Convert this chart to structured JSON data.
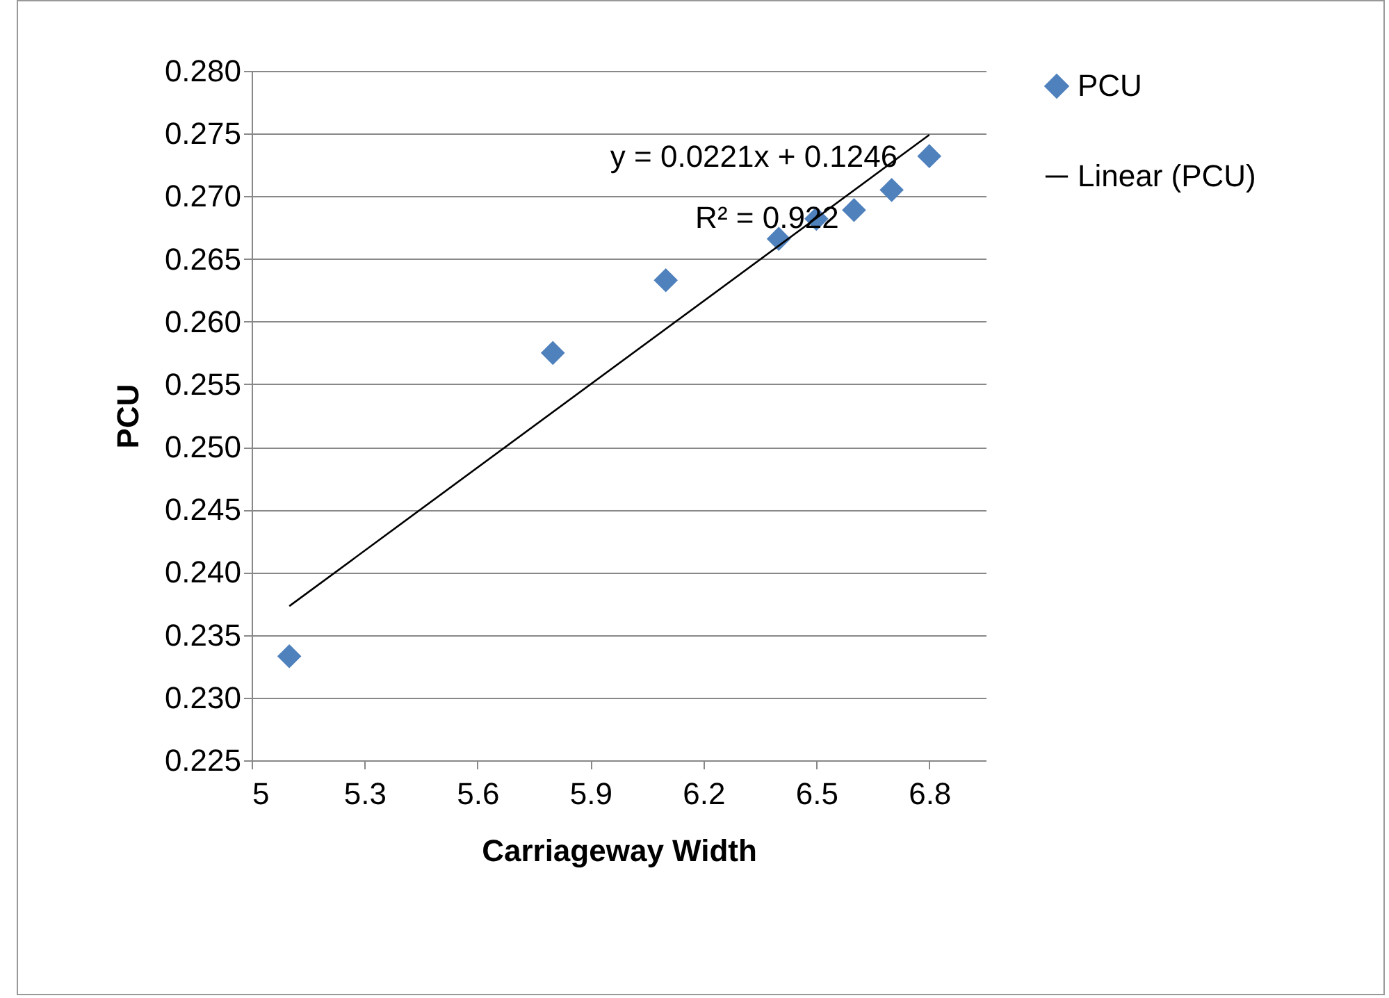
{
  "chart_data": {
    "type": "scatter",
    "xlabel": "Carriageway Width",
    "ylabel": "PCU",
    "xlim": [
      5,
      6.95
    ],
    "xticks": [
      5,
      5.3,
      5.6,
      5.9,
      6.2,
      6.5,
      6.8
    ],
    "ylim": [
      0.225,
      0.28
    ],
    "yticks": [
      {
        "value": 0.225,
        "label": "0.225"
      },
      {
        "value": 0.23,
        "label": "0.230"
      },
      {
        "value": 0.235,
        "label": "0.235"
      },
      {
        "value": 0.24,
        "label": "0.240"
      },
      {
        "value": 0.245,
        "label": "0.245"
      },
      {
        "value": 0.25,
        "label": "0.250"
      },
      {
        "value": 0.255,
        "label": "0.255"
      },
      {
        "value": 0.26,
        "label": "0.260"
      },
      {
        "value": 0.265,
        "label": "0.265"
      },
      {
        "value": 0.27,
        "label": "0.270"
      },
      {
        "value": 0.275,
        "label": "0.275"
      },
      {
        "value": 0.28,
        "label": "0.280"
      }
    ],
    "grid": "y",
    "legend": "right",
    "annotations": [
      "y = 0.0221x + 0.1246",
      "R² = 0.922"
    ],
    "series": [
      {
        "name": "PCU",
        "marker": "diamond",
        "color": "#4f81bd",
        "x": [
          5.1,
          5.8,
          6.1,
          6.4,
          6.5,
          6.6,
          6.7,
          6.8
        ],
        "values": [
          0.2333,
          0.2575,
          0.2633,
          0.2666,
          0.2682,
          0.2689,
          0.2705,
          0.2732
        ]
      },
      {
        "name": "Linear (PCU)",
        "type": "line",
        "color": "#000000",
        "x": [
          5.1,
          6.8
        ],
        "values": [
          0.2373,
          0.2749
        ]
      }
    ]
  }
}
